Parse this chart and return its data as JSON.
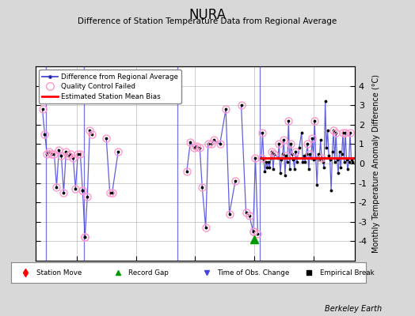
{
  "title": "NURA",
  "subtitle": "Difference of Station Temperature Data from Regional Average",
  "ylabel": "Monthly Temperature Anomaly Difference (°C)",
  "credit": "Berkeley Earth",
  "ylim": [
    -5,
    5
  ],
  "xlim": [
    1956.5,
    1983.5
  ],
  "bias_line_start": 1975.5,
  "bias_line_end": 1983.5,
  "bias_value": 0.28,
  "background_color": "#d8d8d8",
  "plot_bg_color": "#ffffff",
  "grid_color": "#bbbbbb",
  "line_color": "#4444dd",
  "qc_color": "#ff99cc",
  "vertical_lines": [
    1957.4,
    1960.6,
    1968.5,
    1975.5
  ],
  "green_triangle_x": 1975.0,
  "green_triangle_y": -3.9,
  "yticks": [
    -4,
    -3,
    -2,
    -1,
    0,
    1,
    2,
    3,
    4
  ],
  "xticks": [
    1960,
    1965,
    1970,
    1975,
    1980
  ],
  "segments": [
    {
      "x": [
        1957.1,
        1957.3,
        1957.5,
        1957.7,
        1957.9,
        1958.1,
        1958.3,
        1958.5,
        1958.7,
        1958.9,
        1959.1,
        1959.3,
        1959.5,
        1959.7,
        1959.9,
        1960.1,
        1960.3,
        1960.5
      ],
      "y": [
        2.8,
        1.5,
        0.5,
        0.6,
        0.5,
        0.5,
        -1.2,
        0.7,
        0.4,
        -1.5,
        0.6,
        0.4,
        0.5,
        0.3,
        -1.3,
        0.5,
        0.5,
        -1.4
      ],
      "qc": [
        1,
        1,
        1,
        1,
        1,
        1,
        1,
        1,
        1,
        1,
        1,
        1,
        1,
        1,
        1,
        1,
        1,
        1
      ]
    },
    {
      "x": [
        1960.5,
        1960.7
      ],
      "y": [
        -1.4,
        -3.8
      ],
      "qc": [
        1,
        1
      ]
    },
    {
      "x": [
        1960.7,
        1960.9,
        1961.1,
        1961.3
      ],
      "y": [
        -3.8,
        -1.7,
        1.7,
        1.5
      ],
      "qc": [
        1,
        1,
        1,
        1
      ]
    },
    {
      "x": [
        1962.5,
        1962.8,
        1963.0,
        1963.5
      ],
      "y": [
        1.3,
        -1.5,
        -1.5,
        0.6
      ],
      "qc": [
        1,
        1,
        1,
        1
      ]
    },
    {
      "x": [
        1969.3,
        1969.6,
        1969.9,
        1970.1,
        1970.4,
        1970.6,
        1970.9,
        1971.1,
        1971.4,
        1971.6,
        1972.1,
        1972.6,
        1972.9,
        1973.4
      ],
      "y": [
        -0.4,
        1.1,
        0.8,
        0.9,
        0.8,
        -1.2,
        -3.3,
        1.0,
        1.0,
        1.2,
        1.0,
        2.8,
        -2.6,
        -0.9
      ],
      "qc": [
        1,
        1,
        1,
        1,
        1,
        1,
        1,
        1,
        1,
        1,
        1,
        1,
        1,
        1
      ]
    },
    {
      "x": [
        1973.9,
        1974.3,
        1974.6,
        1974.9
      ],
      "y": [
        3.0,
        -2.5,
        -2.7,
        -3.5
      ],
      "qc": [
        1,
        1,
        1,
        1
      ]
    },
    {
      "x": [
        1974.9,
        1975.1,
        1975.3
      ],
      "y": [
        -3.5,
        0.3,
        -3.6
      ],
      "qc": [
        1,
        1,
        1
      ]
    },
    {
      "x": [
        1975.6,
        1975.7,
        1975.8,
        1975.9,
        1976.0,
        1976.1,
        1976.2,
        1976.3,
        1976.4,
        1976.5,
        1976.6,
        1976.7,
        1977.0,
        1977.1,
        1977.2,
        1977.3,
        1977.4,
        1977.5,
        1977.6,
        1977.7,
        1977.8,
        1977.9,
        1978.0,
        1978.1,
        1978.2,
        1978.3,
        1978.4,
        1978.5,
        1978.6,
        1978.8,
        1979.0,
        1979.1,
        1979.2,
        1979.3,
        1979.4,
        1979.5,
        1979.6,
        1979.7,
        1979.8,
        1979.9,
        1980.0,
        1980.1,
        1980.2,
        1980.3,
        1980.4,
        1980.5,
        1980.6,
        1980.7,
        1980.8,
        1980.9,
        1981.0,
        1981.1,
        1981.2,
        1981.3,
        1981.4,
        1981.5,
        1981.6,
        1981.7,
        1981.8,
        1981.9,
        1982.0,
        1982.1,
        1982.2,
        1982.3,
        1982.4,
        1982.5,
        1982.6,
        1982.7,
        1982.8,
        1982.9,
        1983.0,
        1983.1,
        1983.2,
        1983.3
      ],
      "y": [
        0.3,
        1.6,
        0.2,
        -0.4,
        0.1,
        -0.2,
        0.1,
        -0.2,
        0.3,
        0.6,
        -0.3,
        0.5,
        0.3,
        1.0,
        -0.5,
        0.2,
        0.5,
        1.2,
        -0.6,
        0.4,
        0.1,
        2.2,
        -0.3,
        1.0,
        0.5,
        0.2,
        -0.3,
        0.6,
        0.1,
        0.8,
        1.6,
        0.1,
        0.4,
        0.1,
        0.5,
        1.0,
        -0.3,
        0.5,
        0.3,
        1.3,
        0.2,
        2.2,
        0.3,
        -1.1,
        0.5,
        0.2,
        1.2,
        0.3,
        0.1,
        -0.2,
        3.2,
        0.8,
        1.7,
        0.4,
        0.2,
        -1.4,
        0.6,
        1.7,
        0.1,
        1.6,
        0.2,
        -0.5,
        0.6,
        -0.2,
        0.5,
        1.6,
        0.1,
        1.6,
        0.2,
        -0.3,
        0.1,
        1.6,
        0.2,
        0.1
      ],
      "qc": [
        1,
        1,
        0,
        0,
        0,
        0,
        0,
        0,
        0,
        1,
        0,
        1,
        0,
        1,
        0,
        0,
        0,
        1,
        0,
        1,
        0,
        1,
        0,
        1,
        0,
        0,
        0,
        1,
        0,
        0,
        0,
        0,
        0,
        0,
        0,
        1,
        0,
        1,
        0,
        1,
        0,
        1,
        0,
        0,
        0,
        0,
        0,
        1,
        0,
        0,
        0,
        0,
        0,
        0,
        0,
        0,
        0,
        1,
        0,
        1,
        0,
        0,
        0,
        0,
        0,
        1,
        0,
        1,
        0,
        0,
        0,
        1,
        0,
        0
      ]
    }
  ]
}
